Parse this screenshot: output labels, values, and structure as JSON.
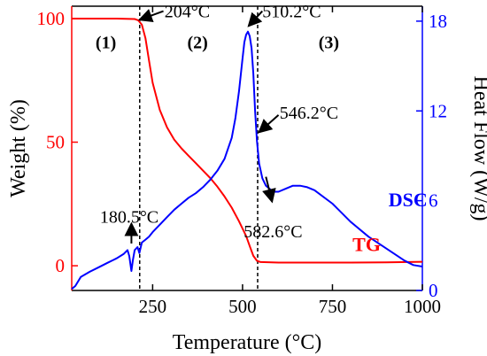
{
  "chart_data": {
    "type": "line",
    "xlabel": "Temperature (°C)",
    "ylabel_left": "Weight (%)",
    "ylabel_right": "Heat Flow (W/g)",
    "xlim": [
      25,
      1000
    ],
    "ylim_left": [
      -10,
      105
    ],
    "ylim_right": [
      0,
      19
    ],
    "x_ticks": [
      250,
      500,
      750,
      1000
    ],
    "y_left_ticks": [
      0,
      50,
      100
    ],
    "y_right_ticks": [
      0,
      6,
      12,
      18
    ],
    "grid": false,
    "colors": {
      "tg": "#ff0000",
      "dsc": "#0000ff",
      "left_axis": "#ff0000",
      "right_axis": "#0000ff",
      "frame": "#000000"
    },
    "series": [
      {
        "name": "TG",
        "axis": "left",
        "x": [
          25,
          100,
          150,
          200,
          210,
          220,
          230,
          240,
          250,
          270,
          290,
          310,
          330,
          350,
          370,
          390,
          410,
          430,
          450,
          470,
          490,
          510,
          520,
          530,
          540,
          550,
          600,
          700,
          800,
          900,
          1000
        ],
        "y": [
          100,
          100,
          100,
          99.8,
          99.3,
          97.5,
          92,
          83,
          74,
          63,
          56,
          51,
          47.5,
          44.5,
          41.5,
          38.5,
          35.5,
          32,
          28,
          23.5,
          18,
          12,
          8,
          4,
          2,
          1.5,
          1.3,
          1.3,
          1.3,
          1.4,
          1.6
        ]
      },
      {
        "name": "DSC",
        "axis": "right",
        "x": [
          25,
          35,
          50,
          75,
          100,
          125,
          150,
          170,
          180,
          185,
          191,
          195,
          200,
          208,
          213,
          220,
          230,
          240,
          250,
          270,
          290,
          310,
          330,
          350,
          370,
          390,
          410,
          430,
          450,
          470,
          480,
          490,
          500,
          505,
          510,
          515,
          520,
          525,
          530,
          535,
          540,
          546,
          555,
          565,
          575,
          585,
          600,
          620,
          640,
          660,
          680,
          700,
          750,
          800,
          850,
          900,
          950,
          975,
          1000
        ],
        "y": [
          0.1,
          0.3,
          0.9,
          1.25,
          1.55,
          1.85,
          2.15,
          2.45,
          2.7,
          2.3,
          1.3,
          2.0,
          2.7,
          2.9,
          2.5,
          3.2,
          3.4,
          3.6,
          3.9,
          4.4,
          4.9,
          5.4,
          5.8,
          6.2,
          6.5,
          6.9,
          7.4,
          8.0,
          8.8,
          10.2,
          11.5,
          13.3,
          15.5,
          16.6,
          17.1,
          17.3,
          17.0,
          16.2,
          14.5,
          12.0,
          10.0,
          8.5,
          7.5,
          7.0,
          6.8,
          6.6,
          6.6,
          6.8,
          7.0,
          7.0,
          6.9,
          6.7,
          5.8,
          4.6,
          3.6,
          2.8,
          2.0,
          1.7,
          1.6
        ]
      }
    ],
    "vlines": [
      214,
      542
    ],
    "region_labels": [
      {
        "text": "(1)",
        "x": 120,
        "y_left": 88
      },
      {
        "text": "(2)",
        "x": 375,
        "y_left": 88
      },
      {
        "text": "(3)",
        "x": 740,
        "y_left": 88
      }
    ],
    "annotations": [
      {
        "text": "204°C",
        "tip": [
          214,
          99.5
        ],
        "tail": [
          280,
          103
        ],
        "label": [
          283,
          103
        ],
        "anchor": "start"
      },
      {
        "text": "510.2°C",
        "tip": [
          517,
          97
        ],
        "tail": [
          555,
          103
        ],
        "label": [
          555,
          103
        ],
        "anchor": "start"
      },
      {
        "text": "546.2°C",
        "tip": [
          546,
          54
        ],
        "tail": [
          600,
          61
        ],
        "label": [
          603,
          62
        ],
        "anchor": "start"
      },
      {
        "text": "582.6°C",
        "tip": [
          582,
          26
        ],
        "tail": [
          565,
          36
        ],
        "label": [
          585,
          14
        ],
        "anchor": "middle"
      },
      {
        "text": "180.5°C",
        "tip": [
          191,
          17
        ],
        "tail": [
          191,
          9
        ],
        "label": [
          185,
          20
        ],
        "anchor": "middle"
      }
    ],
    "series_labels": [
      {
        "text": "DSC",
        "x": 960,
        "y_left": 24,
        "color": "#0000ff"
      },
      {
        "text": "TG",
        "x": 845,
        "y_left": 6,
        "color": "#ff0000"
      }
    ]
  }
}
